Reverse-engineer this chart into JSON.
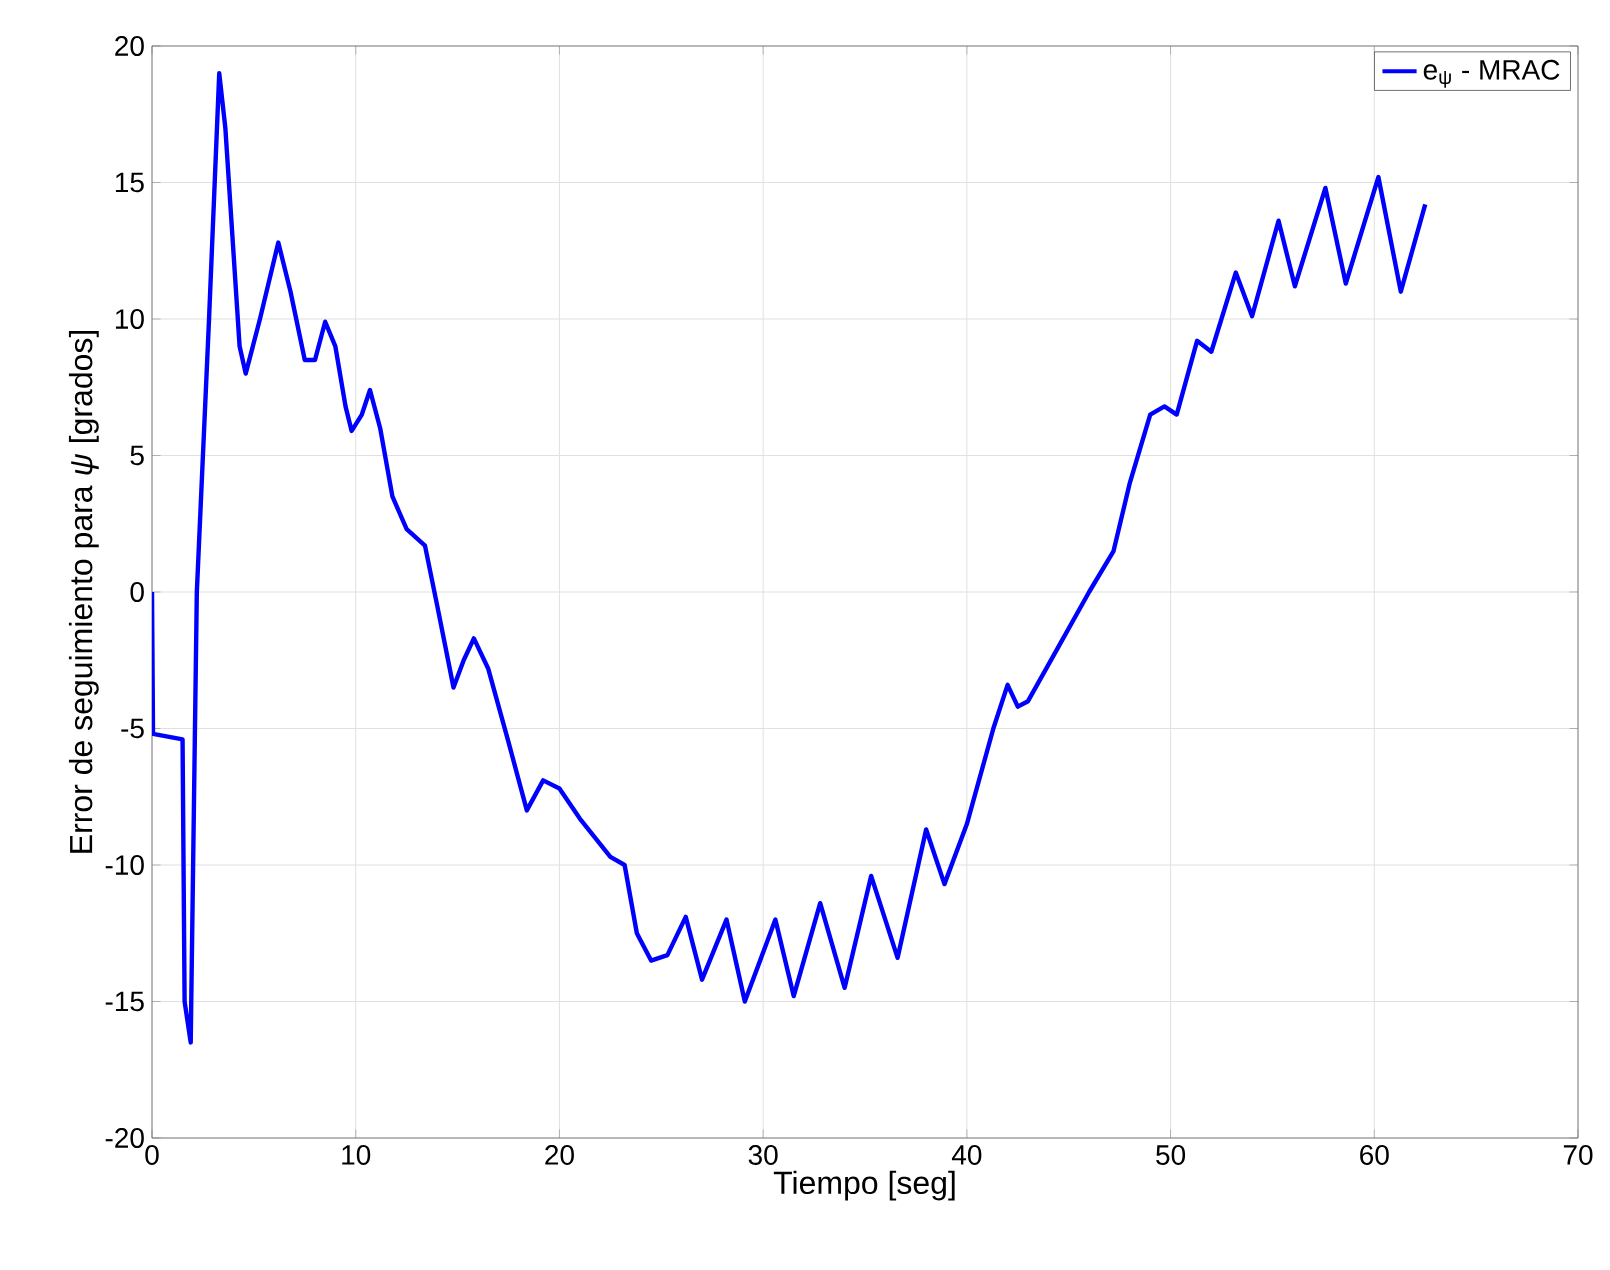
{
  "chart_data": {
    "type": "line",
    "xlabel": "Tiempo [seg]",
    "ylabel": "Error de seguimiento para *ψ* [grados]",
    "xlim": [
      0,
      70
    ],
    "ylim": [
      -20,
      20
    ],
    "xticks": [
      0,
      10,
      20,
      30,
      40,
      50,
      60,
      70
    ],
    "yticks": [
      -20,
      -15,
      -10,
      -5,
      0,
      5,
      10,
      15,
      20
    ],
    "grid": true,
    "legend": "top right",
    "line_style": "solid",
    "series": [
      {
        "name": "e$_{ψ}$ - MRAC",
        "color": "#0000ff",
        "x": [
          0,
          0.05,
          1.5,
          1.6,
          1.9,
          2.2,
          2.8,
          3.3,
          3.6,
          4.3,
          4.6,
          5.3,
          6.2,
          6.8,
          7.5,
          8,
          8.5,
          9,
          9.5,
          9.8,
          10.3,
          10.7,
          11.2,
          11.8,
          12.5,
          13.4,
          14,
          14.8,
          15.3,
          15.8,
          16.5,
          17.5,
          18.4,
          19.2,
          20,
          21,
          22.5,
          23.2,
          23.8,
          24.5,
          25.3,
          26.2,
          27,
          28.2,
          29.1,
          30.6,
          31.5,
          32.8,
          34,
          35.3,
          36.6,
          38,
          38.9,
          40,
          41.3,
          42,
          42.5,
          43,
          44.5,
          46,
          47.2,
          48,
          49,
          49.7,
          50.3,
          51.3,
          52,
          53.2,
          54,
          55.3,
          56.1,
          57.6,
          58.6,
          60.2,
          61.3,
          62.5
        ],
        "values": [
          0,
          -5.2,
          -5.4,
          -15,
          -16.5,
          0,
          10,
          19,
          17,
          9,
          8,
          10,
          12.8,
          11,
          8.5,
          8.5,
          9.9,
          9,
          6.8,
          5.9,
          6.5,
          7.4,
          6,
          3.5,
          2.3,
          1.7,
          -0.5,
          -3.5,
          -2.5,
          -1.7,
          -2.8,
          -5.5,
          -8,
          -6.9,
          -7.2,
          -8.3,
          -9.7,
          -10,
          -12.5,
          -13.5,
          -13.3,
          -11.9,
          -14.2,
          -12,
          -15,
          -12,
          -14.8,
          -11.4,
          -14.5,
          -10.4,
          -13.4,
          -8.7,
          -10.7,
          -8.5,
          -5,
          -3.4,
          -4.2,
          -4,
          -2,
          0,
          1.5,
          4,
          6.5,
          6.8,
          6.5,
          9.2,
          8.8,
          11.7,
          10.1,
          13.6,
          11.2,
          14.8,
          11.3,
          15.2,
          11,
          14.2
        ]
      }
    ]
  }
}
